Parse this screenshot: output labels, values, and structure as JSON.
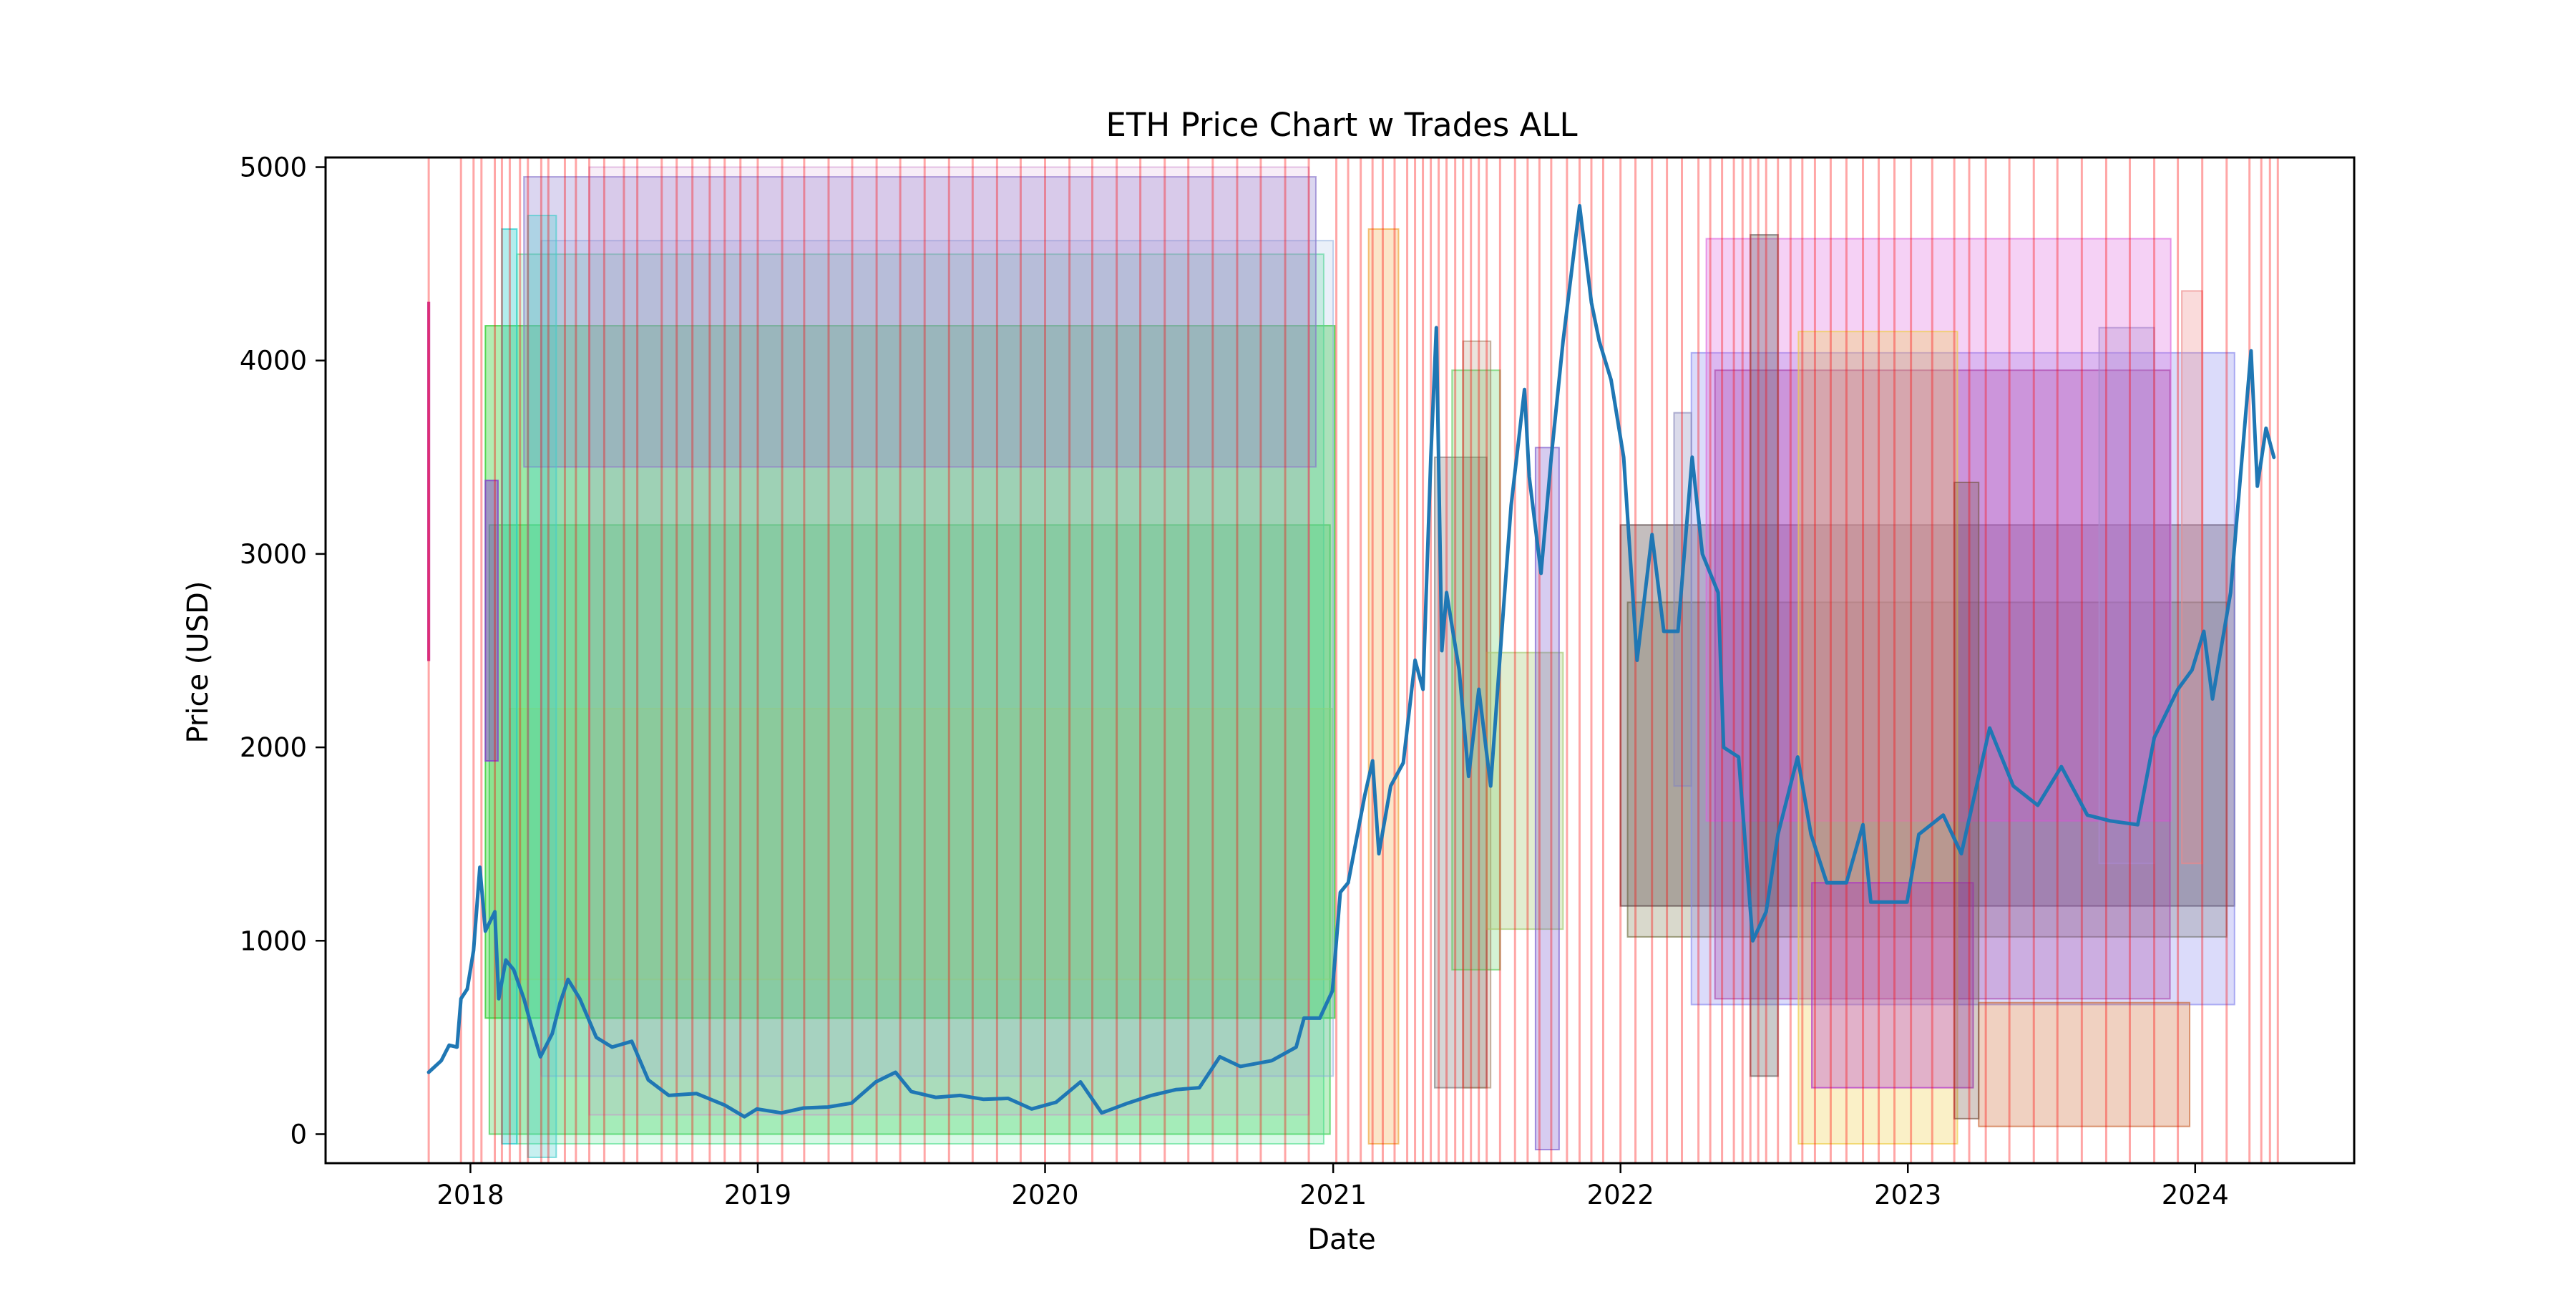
{
  "chart_data": {
    "type": "line",
    "title": "ETH Price Chart w Trades ALL",
    "xlabel": "Date",
    "ylabel": "Price (USD)",
    "xlim": [
      "2017-07-01",
      "2024-07-21"
    ],
    "ylim": [
      -150,
      5050
    ],
    "x_ticks": [
      "2018",
      "2019",
      "2020",
      "2021",
      "2022",
      "2023",
      "2024"
    ],
    "y_ticks": [
      "0",
      "1000",
      "2000",
      "3000",
      "4000",
      "5000"
    ],
    "grid": false,
    "legend": "none",
    "series": [
      {
        "color": "#1f77b4",
        "points": [
          [
            "2017-11-09",
            320
          ],
          [
            "2017-11-25",
            380
          ],
          [
            "2017-12-05",
            460
          ],
          [
            "2017-12-15",
            450
          ],
          [
            "2017-12-20",
            700
          ],
          [
            "2017-12-28",
            750
          ],
          [
            "2018-01-05",
            950
          ],
          [
            "2018-01-13",
            1380
          ],
          [
            "2018-01-20",
            1050
          ],
          [
            "2018-02-01",
            1150
          ],
          [
            "2018-02-06",
            700
          ],
          [
            "2018-02-15",
            900
          ],
          [
            "2018-02-25",
            850
          ],
          [
            "2018-03-10",
            700
          ],
          [
            "2018-03-20",
            550
          ],
          [
            "2018-03-31",
            400
          ],
          [
            "2018-04-15",
            520
          ],
          [
            "2018-04-25",
            680
          ],
          [
            "2018-05-05",
            800
          ],
          [
            "2018-05-20",
            700
          ],
          [
            "2018-06-10",
            500
          ],
          [
            "2018-06-30",
            450
          ],
          [
            "2018-07-25",
            480
          ],
          [
            "2018-08-15",
            280
          ],
          [
            "2018-09-10",
            200
          ],
          [
            "2018-10-15",
            210
          ],
          [
            "2018-11-20",
            150
          ],
          [
            "2018-12-15",
            90
          ],
          [
            "2018-12-31",
            130
          ],
          [
            "2019-01-31",
            110
          ],
          [
            "2019-02-28",
            135
          ],
          [
            "2019-03-31",
            140
          ],
          [
            "2019-04-30",
            160
          ],
          [
            "2019-05-31",
            270
          ],
          [
            "2019-06-25",
            320
          ],
          [
            "2019-07-15",
            220
          ],
          [
            "2019-08-15",
            190
          ],
          [
            "2019-09-15",
            200
          ],
          [
            "2019-10-15",
            180
          ],
          [
            "2019-11-15",
            185
          ],
          [
            "2019-12-15",
            130
          ],
          [
            "2020-01-15",
            165
          ],
          [
            "2020-02-15",
            270
          ],
          [
            "2020-03-13",
            110
          ],
          [
            "2020-04-15",
            160
          ],
          [
            "2020-05-15",
            200
          ],
          [
            "2020-06-15",
            230
          ],
          [
            "2020-07-15",
            240
          ],
          [
            "2020-08-10",
            400
          ],
          [
            "2020-09-05",
            350
          ],
          [
            "2020-10-15",
            380
          ],
          [
            "2020-11-15",
            450
          ],
          [
            "2020-11-25",
            600
          ],
          [
            "2020-12-15",
            600
          ],
          [
            "2020-12-31",
            740
          ],
          [
            "2021-01-10",
            1250
          ],
          [
            "2021-01-20",
            1300
          ],
          [
            "2021-02-10",
            1750
          ],
          [
            "2021-02-20",
            1930
          ],
          [
            "2021-02-28",
            1450
          ],
          [
            "2021-03-15",
            1800
          ],
          [
            "2021-03-31",
            1920
          ],
          [
            "2021-04-15",
            2450
          ],
          [
            "2021-04-25",
            2300
          ],
          [
            "2021-05-05",
            3500
          ],
          [
            "2021-05-12",
            4170
          ],
          [
            "2021-05-19",
            2500
          ],
          [
            "2021-05-25",
            2800
          ],
          [
            "2021-06-10",
            2400
          ],
          [
            "2021-06-22",
            1850
          ],
          [
            "2021-07-05",
            2300
          ],
          [
            "2021-07-20",
            1800
          ],
          [
            "2021-08-05",
            2700
          ],
          [
            "2021-08-15",
            3250
          ],
          [
            "2021-09-01",
            3850
          ],
          [
            "2021-09-07",
            3400
          ],
          [
            "2021-09-22",
            2900
          ],
          [
            "2021-10-05",
            3500
          ],
          [
            "2021-10-20",
            4100
          ],
          [
            "2021-11-10",
            4800
          ],
          [
            "2021-11-25",
            4300
          ],
          [
            "2021-12-05",
            4100
          ],
          [
            "2021-12-20",
            3900
          ],
          [
            "2022-01-05",
            3500
          ],
          [
            "2022-01-22",
            2450
          ],
          [
            "2022-02-10",
            3100
          ],
          [
            "2022-02-25",
            2600
          ],
          [
            "2022-03-15",
            2600
          ],
          [
            "2022-04-02",
            3500
          ],
          [
            "2022-04-15",
            3000
          ],
          [
            "2022-05-05",
            2800
          ],
          [
            "2022-05-12",
            2000
          ],
          [
            "2022-05-31",
            1950
          ],
          [
            "2022-06-18",
            1000
          ],
          [
            "2022-07-05",
            1150
          ],
          [
            "2022-07-20",
            1550
          ],
          [
            "2022-08-14",
            1950
          ],
          [
            "2022-08-31",
            1550
          ],
          [
            "2022-09-20",
            1300
          ],
          [
            "2022-10-15",
            1300
          ],
          [
            "2022-11-05",
            1600
          ],
          [
            "2022-11-15",
            1200
          ],
          [
            "2022-12-15",
            1200
          ],
          [
            "2022-12-31",
            1200
          ],
          [
            "2023-01-15",
            1550
          ],
          [
            "2023-02-15",
            1650
          ],
          [
            "2023-03-10",
            1450
          ],
          [
            "2023-04-15",
            2100
          ],
          [
            "2023-05-15",
            1800
          ],
          [
            "2023-06-15",
            1700
          ],
          [
            "2023-07-15",
            1900
          ],
          [
            "2023-08-17",
            1650
          ],
          [
            "2023-09-15",
            1620
          ],
          [
            "2023-10-20",
            1600
          ],
          [
            "2023-11-10",
            2050
          ],
          [
            "2023-12-10",
            2300
          ],
          [
            "2023-12-28",
            2400
          ],
          [
            "2024-01-12",
            2600
          ],
          [
            "2024-01-23",
            2250
          ],
          [
            "2024-02-15",
            2800
          ],
          [
            "2024-03-12",
            4050
          ],
          [
            "2024-03-20",
            3350
          ],
          [
            "2024-03-31",
            3650
          ],
          [
            "2024-04-10",
            3500
          ]
        ]
      }
    ],
    "trade_boxes": [
      {
        "x": [
          "2018-01-20",
          "2021-01-03"
        ],
        "y": [
          600,
          4180
        ],
        "color": "#22cc22",
        "opacity": 0.35
      },
      {
        "x": [
          "2018-01-25",
          "2020-12-28"
        ],
        "y": [
          0,
          3150
        ],
        "color": "#33cc44",
        "opacity": 0.3
      },
      {
        "x": [
          "2018-03-01",
          "2020-12-20"
        ],
        "y": [
          -50,
          4550
        ],
        "color": "#44dd88",
        "opacity": 0.22
      },
      {
        "x": [
          "2018-02-20",
          "2020-12-31"
        ],
        "y": [
          800,
          2200
        ],
        "color": "#88dd66",
        "opacity": 0.25
      },
      {
        "x": [
          "2018-04-01",
          "2021-01-01"
        ],
        "y": [
          300,
          4620
        ],
        "color": "#88aadd",
        "opacity": 0.18
      },
      {
        "x": [
          "2018-03-10",
          "2020-12-10"
        ],
        "y": [
          3450,
          4950
        ],
        "color": "#8877cc",
        "opacity": 0.3
      },
      {
        "x": [
          "2018-06-01",
          "2020-12-01"
        ],
        "y": [
          100,
          5000
        ],
        "color": "#cc88cc",
        "opacity": 0.15
      },
      {
        "x": [
          "2021-02-15",
          "2021-03-25"
        ],
        "y": [
          -50,
          4680
        ],
        "color": "#ee9922",
        "opacity": 0.25
      },
      {
        "x": [
          "2021-05-10",
          "2021-07-15"
        ],
        "y": [
          240,
          3500
        ],
        "color": "#777777",
        "opacity": 0.3
      },
      {
        "x": [
          "2021-06-01",
          "2021-08-01"
        ],
        "y": [
          850,
          3950
        ],
        "color": "#55cc55",
        "opacity": 0.25
      },
      {
        "x": [
          "2021-06-15",
          "2021-07-20"
        ],
        "y": [
          240,
          4100
        ],
        "color": "#997755",
        "opacity": 0.2
      },
      {
        "x": [
          "2021-07-15",
          "2021-10-20"
        ],
        "y": [
          1060,
          2490
        ],
        "color": "#aacc77",
        "opacity": 0.35
      },
      {
        "x": [
          "2021-09-15",
          "2021-10-15"
        ],
        "y": [
          -80,
          3550
        ],
        "color": "#7755cc",
        "opacity": 0.3
      },
      {
        "x": [
          "2022-01-10",
          "2024-02-10"
        ],
        "y": [
          1020,
          2750
        ],
        "color": "#666633",
        "opacity": 0.25
      },
      {
        "x": [
          "2022-01-01",
          "2024-02-20"
        ],
        "y": [
          1180,
          3150
        ],
        "color": "#554444",
        "opacity": 0.35
      },
      {
        "x": [
          "2022-04-01",
          "2024-02-20"
        ],
        "y": [
          670,
          4040
        ],
        "color": "#8888ee",
        "opacity": 0.3
      },
      {
        "x": [
          "2022-04-20",
          "2023-12-01"
        ],
        "y": [
          1620,
          4630
        ],
        "color": "#dd66dd",
        "opacity": 0.3
      },
      {
        "x": [
          "2022-05-01",
          "2023-11-30"
        ],
        "y": [
          700,
          3950
        ],
        "color": "#aa44aa",
        "opacity": 0.3
      },
      {
        "x": [
          "2022-06-15",
          "2022-07-20"
        ],
        "y": [
          300,
          4650
        ],
        "color": "#666666",
        "opacity": 0.35
      },
      {
        "x": [
          "2022-08-15",
          "2023-03-05"
        ],
        "y": [
          -50,
          4150
        ],
        "color": "#eecc44",
        "opacity": 0.3
      },
      {
        "x": [
          "2022-09-01",
          "2023-03-25"
        ],
        "y": [
          240,
          1300
        ],
        "color": "#aa22cc",
        "opacity": 0.3
      },
      {
        "x": [
          "2023-04-01",
          "2023-12-25"
        ],
        "y": [
          40,
          680
        ],
        "color": "#cc6633",
        "opacity": 0.3
      },
      {
        "x": [
          "2023-03-01",
          "2023-04-01"
        ],
        "y": [
          80,
          3370
        ],
        "color": "#775544",
        "opacity": 0.3
      },
      {
        "x": [
          "2022-03-10",
          "2022-04-01"
        ],
        "y": [
          1800,
          3730
        ],
        "color": "#8888bb",
        "opacity": 0.3
      },
      {
        "x": [
          "2023-09-01",
          "2023-11-10"
        ],
        "y": [
          1400,
          4170
        ],
        "color": "#aa88cc",
        "opacity": 0.3
      },
      {
        "x": [
          "2023-12-15",
          "2024-01-10"
        ],
        "y": [
          1400,
          4360
        ],
        "color": "#ee8888",
        "opacity": 0.3
      },
      {
        "x": [
          "2017-11-08",
          "2017-11-10"
        ],
        "y": [
          2450,
          4300
        ],
        "color": "#cc44aa",
        "opacity": 0.7
      },
      {
        "x": [
          "2018-01-20",
          "2018-02-05"
        ],
        "y": [
          1930,
          3380
        ],
        "color": "#8844cc",
        "opacity": 0.5
      },
      {
        "x": [
          "2018-02-10",
          "2018-03-01"
        ],
        "y": [
          -50,
          4680
        ],
        "color": "#22cccc",
        "opacity": 0.35
      },
      {
        "x": [
          "2018-03-15",
          "2018-04-20"
        ],
        "y": [
          -120,
          4750
        ],
        "color": "#44cccc",
        "opacity": 0.3
      }
    ],
    "signal_lines": {
      "color": "#ff0000",
      "dates": [
        "2017-11-09",
        "2017-12-20",
        "2018-01-05",
        "2018-01-15",
        "2018-02-01",
        "2018-02-10",
        "2018-02-20",
        "2018-03-05",
        "2018-03-15",
        "2018-04-01",
        "2018-04-10",
        "2018-05-01",
        "2018-05-15",
        "2018-06-01",
        "2018-06-20",
        "2018-07-15",
        "2018-08-01",
        "2018-09-01",
        "2018-09-20",
        "2018-10-10",
        "2018-11-01",
        "2018-11-20",
        "2018-12-10",
        "2019-01-01",
        "2019-02-01",
        "2019-03-01",
        "2019-04-01",
        "2019-05-01",
        "2019-06-01",
        "2019-07-01",
        "2019-08-01",
        "2019-09-01",
        "2019-10-01",
        "2019-11-01",
        "2019-12-01",
        "2020-01-01",
        "2020-02-01",
        "2020-03-01",
        "2020-04-01",
        "2020-05-01",
        "2020-06-01",
        "2020-07-01",
        "2020-08-01",
        "2020-09-01",
        "2020-10-01",
        "2020-11-01",
        "2020-12-01",
        "2021-01-05",
        "2021-01-20",
        "2021-02-05",
        "2021-02-20",
        "2021-03-05",
        "2021-03-20",
        "2021-04-05",
        "2021-04-15",
        "2021-04-25",
        "2021-05-05",
        "2021-05-15",
        "2021-05-25",
        "2021-06-05",
        "2021-06-15",
        "2021-06-25",
        "2021-07-05",
        "2021-07-15",
        "2021-08-01",
        "2021-08-20",
        "2021-09-05",
        "2021-09-20",
        "2021-10-05",
        "2021-10-25",
        "2021-11-10",
        "2021-11-25",
        "2021-12-10",
        "2022-01-01",
        "2022-01-20",
        "2022-02-10",
        "2022-03-01",
        "2022-03-20",
        "2022-04-10",
        "2022-04-25",
        "2022-05-10",
        "2022-05-25",
        "2022-06-05",
        "2022-06-15",
        "2022-06-25",
        "2022-07-05",
        "2022-07-20",
        "2022-08-05",
        "2022-08-20",
        "2022-09-05",
        "2022-09-25",
        "2022-10-15",
        "2022-11-05",
        "2022-11-25",
        "2022-12-15",
        "2023-01-05",
        "2023-02-01",
        "2023-03-01",
        "2023-03-20",
        "2023-04-10",
        "2023-05-10",
        "2023-06-10",
        "2023-07-10",
        "2023-08-10",
        "2023-09-10",
        "2023-10-10",
        "2023-11-10",
        "2023-12-10",
        "2024-01-10",
        "2024-02-10",
        "2024-03-10",
        "2024-03-25",
        "2024-04-05",
        "2024-04-15"
      ]
    }
  }
}
